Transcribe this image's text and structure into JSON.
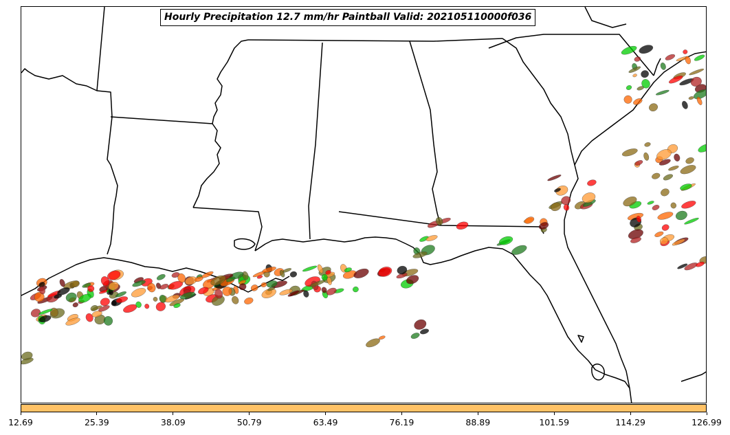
{
  "title": "Hourly Precipitation 12.7 mm/hr Paintball Valid: 202105110000f036",
  "colorbar": {
    "color": "#ffc266",
    "ticks": [
      "12.69",
      "25.39",
      "38.09",
      "50.79",
      "63.49",
      "76.19",
      "88.89",
      "101.59",
      "114.29",
      "126.99"
    ]
  },
  "member_colors": [
    "#ff0000",
    "#ff6600",
    "#00cc00",
    "#8b6914",
    "#1e7b1e",
    "#6b0000",
    "#000000",
    "#ff9933",
    "#6b6b1e",
    "#b22222"
  ],
  "map_style": {
    "land": "#ffffff",
    "border_color": "#000000"
  }
}
